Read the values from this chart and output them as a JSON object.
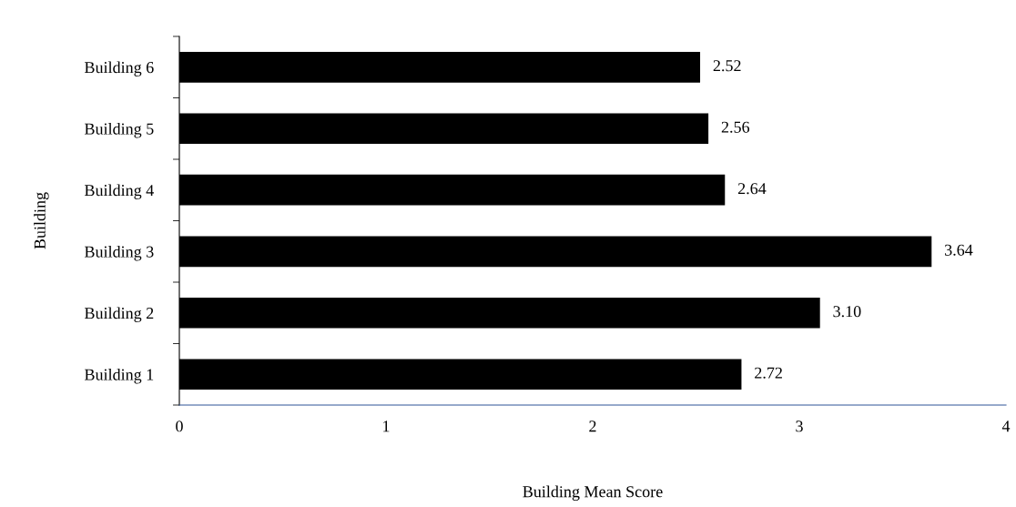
{
  "chart_data": {
    "type": "bar",
    "orientation": "horizontal",
    "xlabel": "Building Mean Score",
    "ylabel": "Building",
    "categories": [
      "Building 6",
      "Building 5",
      "Building 4",
      "Building 3",
      "Building 2",
      "Building 1"
    ],
    "values": [
      2.52,
      2.56,
      2.64,
      3.64,
      3.1,
      2.72
    ],
    "value_labels": [
      "2.52",
      "2.56",
      "2.64",
      "3.64",
      "3.10",
      "2.72"
    ],
    "color": "#000000",
    "xlim": [
      0,
      4
    ],
    "xticks": [
      0,
      1,
      2,
      3,
      4
    ],
    "grid": false,
    "legend": false
  }
}
